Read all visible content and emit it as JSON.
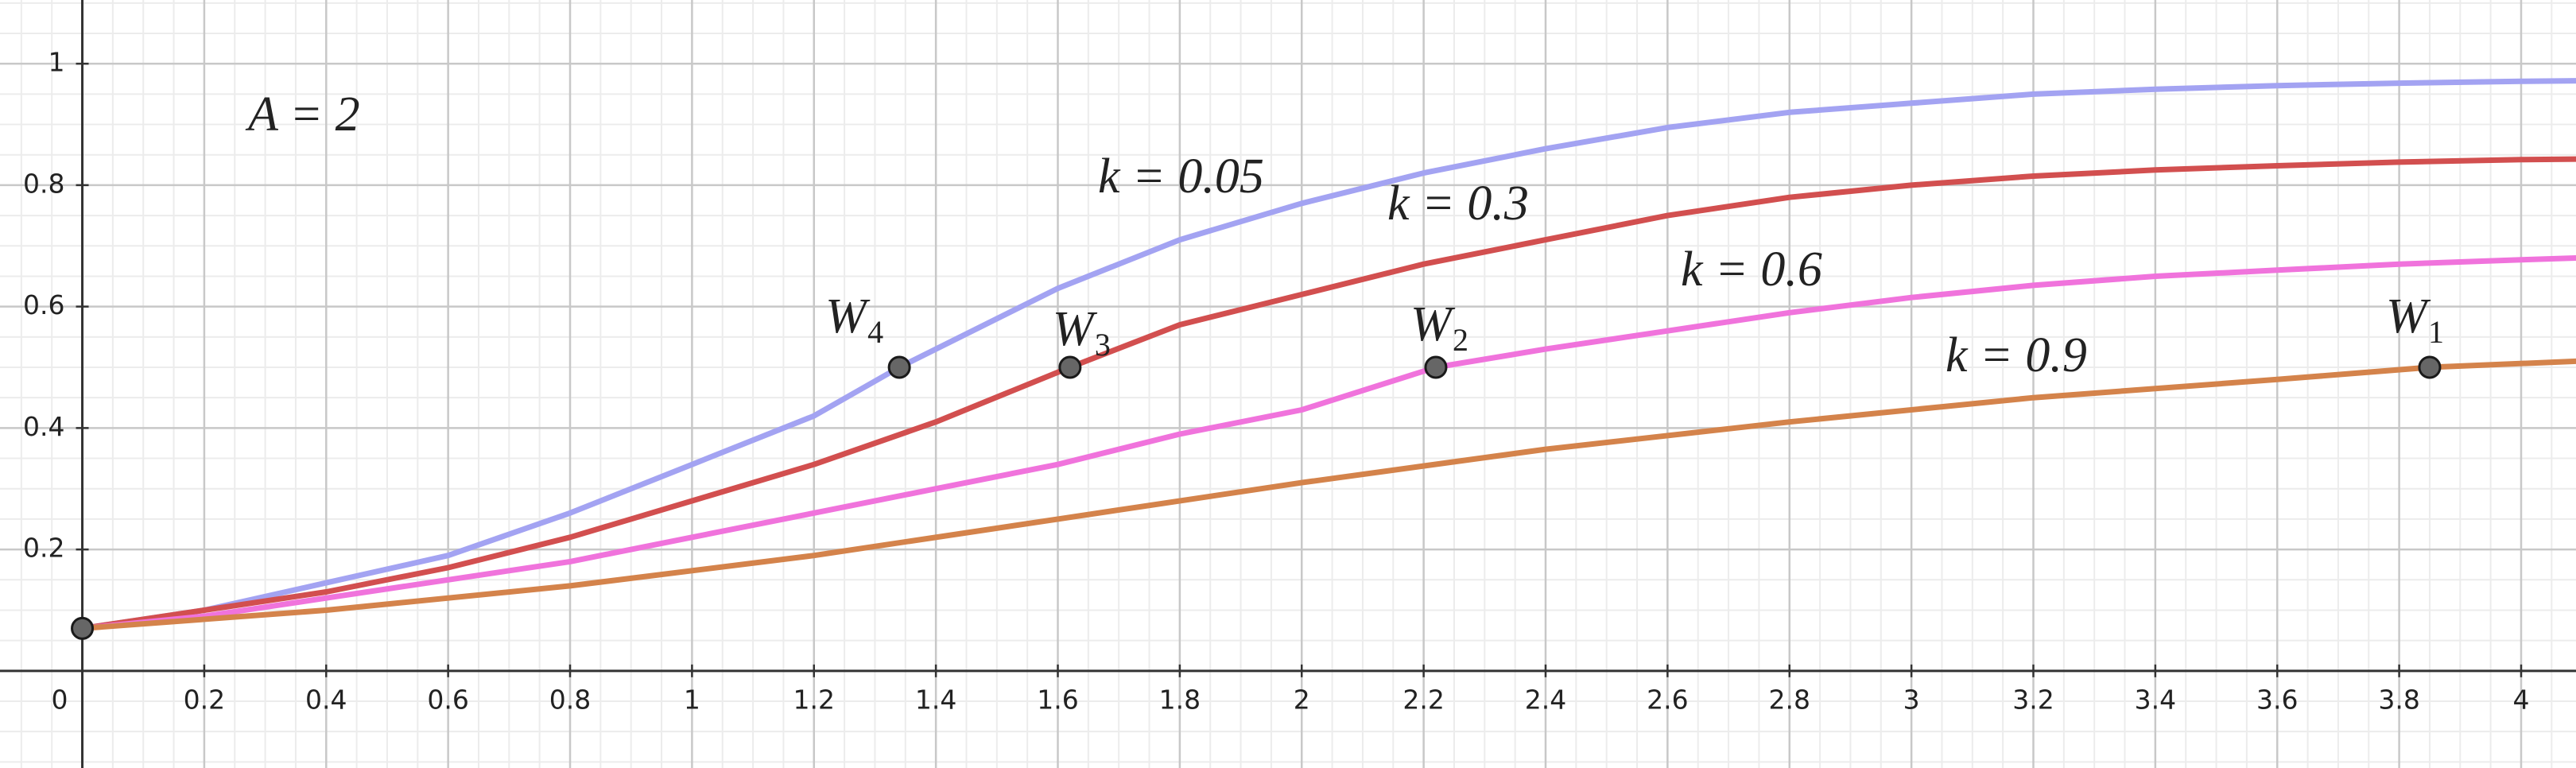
{
  "chart_data": {
    "type": "line",
    "annotation": "A = 2",
    "xlim": [
      -0.135,
      4.09
    ],
    "ylim": [
      -0.16,
      1.105
    ],
    "xticks": [
      0,
      0.2,
      0.4,
      0.6,
      0.8,
      1,
      1.2,
      1.4,
      1.6,
      1.8,
      2,
      2.2,
      2.4,
      2.6,
      2.8,
      3,
      3.2,
      3.4,
      3.6,
      3.8,
      4
    ],
    "yticks": [
      0.2,
      0.4,
      0.6,
      0.8,
      1
    ],
    "grid": true,
    "series": [
      {
        "name": "k = 0.05",
        "color": "#a3a3f2",
        "label_color": "#9c9cf0",
        "x": [
          0,
          0.2,
          0.4,
          0.6,
          0.8,
          1,
          1.2,
          1.34,
          1.6,
          1.8,
          2,
          2.2,
          2.4,
          2.6,
          2.8,
          3,
          3.2,
          3.4,
          3.6,
          3.8,
          4,
          4.09
        ],
        "values": [
          0.07,
          0.1,
          0.145,
          0.19,
          0.26,
          0.34,
          0.42,
          0.5,
          0.63,
          0.71,
          0.77,
          0.82,
          0.86,
          0.895,
          0.92,
          0.935,
          0.95,
          0.958,
          0.964,
          0.968,
          0.971,
          0.972
        ]
      },
      {
        "name": "k = 0.3",
        "color": "#d24f4f",
        "label_color": "#e01056",
        "x": [
          0,
          0.2,
          0.4,
          0.6,
          0.8,
          1,
          1.2,
          1.4,
          1.62,
          1.8,
          2,
          2.2,
          2.4,
          2.6,
          2.8,
          3,
          3.2,
          3.4,
          3.6,
          3.8,
          4,
          4.09
        ],
        "values": [
          0.07,
          0.1,
          0.13,
          0.17,
          0.22,
          0.28,
          0.34,
          0.41,
          0.5,
          0.57,
          0.62,
          0.67,
          0.71,
          0.75,
          0.78,
          0.8,
          0.815,
          0.825,
          0.832,
          0.838,
          0.842,
          0.843
        ]
      },
      {
        "name": "k = 0.6",
        "color": "#f073dc",
        "label_color": "#e040c8",
        "x": [
          0,
          0.2,
          0.4,
          0.6,
          0.8,
          1,
          1.2,
          1.4,
          1.6,
          1.8,
          2,
          2.22,
          2.4,
          2.6,
          2.8,
          3,
          3.2,
          3.4,
          3.6,
          3.8,
          4,
          4.09
        ],
        "values": [
          0.07,
          0.09,
          0.12,
          0.15,
          0.18,
          0.22,
          0.26,
          0.3,
          0.34,
          0.39,
          0.43,
          0.5,
          0.53,
          0.56,
          0.59,
          0.615,
          0.635,
          0.65,
          0.66,
          0.67,
          0.677,
          0.68
        ]
      },
      {
        "name": "k = 0.9",
        "color": "#d4834b",
        "label_color": "#c0621e",
        "x": [
          0,
          0.4,
          0.8,
          1.2,
          1.6,
          2,
          2.4,
          2.8,
          3.2,
          3.6,
          3.85,
          4.09
        ],
        "values": [
          0.07,
          0.1,
          0.14,
          0.19,
          0.25,
          0.31,
          0.365,
          0.41,
          0.45,
          0.48,
          0.5,
          0.51
        ]
      }
    ],
    "points": [
      {
        "x": 0,
        "y": 0.07
      },
      {
        "label": "W",
        "sub": "4",
        "x": 1.34,
        "y": 0.5
      },
      {
        "label": "W",
        "sub": "3",
        "x": 1.62,
        "y": 0.5
      },
      {
        "label": "W",
        "sub": "2",
        "x": 2.22,
        "y": 0.5
      },
      {
        "label": "W",
        "sub": "1",
        "x": 3.85,
        "y": 0.5
      }
    ]
  }
}
